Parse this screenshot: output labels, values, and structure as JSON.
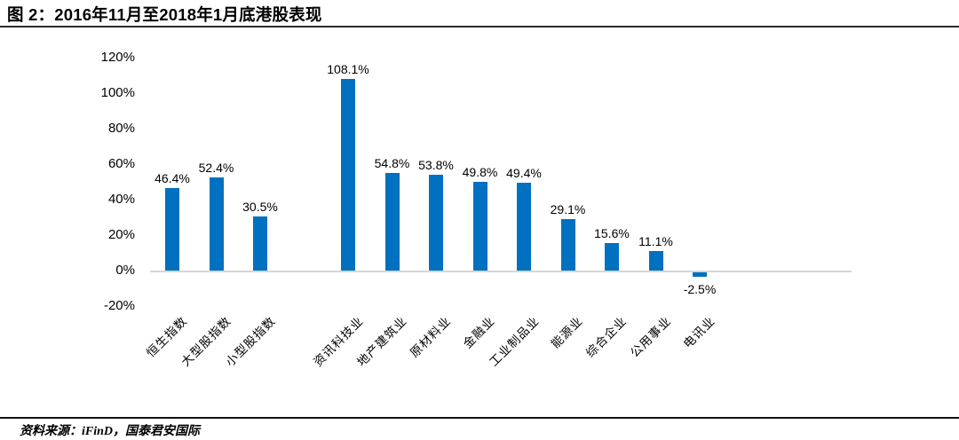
{
  "header": {
    "title": "图 2：2016年11月至2018年1月底港股表现"
  },
  "footer": {
    "source_label": "资料来源：iFinD，国泰君安国际"
  },
  "colors": {
    "bar": "#0070C0",
    "axis_line": "#D6D6D6",
    "title_rule": "#2B2B2B",
    "text": "#000000"
  },
  "chart_data": {
    "type": "bar",
    "title": "2016年11月至2018年1月底港股表现",
    "categories": [
      "恒生指数",
      "大型股指数",
      "小型股指数",
      "",
      "资讯科技业",
      "地产建筑业",
      "原材料业",
      "金融业",
      "工业制品业",
      "能源业",
      "综合企业",
      "公用事业",
      "电讯业"
    ],
    "values": [
      46.4,
      52.4,
      30.5,
      null,
      108.1,
      54.8,
      53.8,
      49.8,
      49.4,
      29.1,
      15.6,
      11.1,
      -2.5
    ],
    "data_labels": [
      "46.4%",
      "52.4%",
      "30.5%",
      "",
      "108.1%",
      "54.8%",
      "53.8%",
      "49.8%",
      "49.4%",
      "29.1%",
      "15.6%",
      "11.1%",
      "-2.5%"
    ],
    "y_ticks": [
      {
        "label": "120%",
        "value": 120
      },
      {
        "label": "100%",
        "value": 100
      },
      {
        "label": "80%",
        "value": 80
      },
      {
        "label": "60%",
        "value": 60
      },
      {
        "label": "40%",
        "value": 40
      },
      {
        "label": "20%",
        "value": 20
      },
      {
        "label": "0%",
        "value": 0
      },
      {
        "label": "-20%",
        "value": -20
      }
    ],
    "ylim": [
      -20,
      120
    ],
    "grid": false,
    "legend": false,
    "bar_color": "#0070C0",
    "axis_line_color": "#D6D6D6"
  }
}
